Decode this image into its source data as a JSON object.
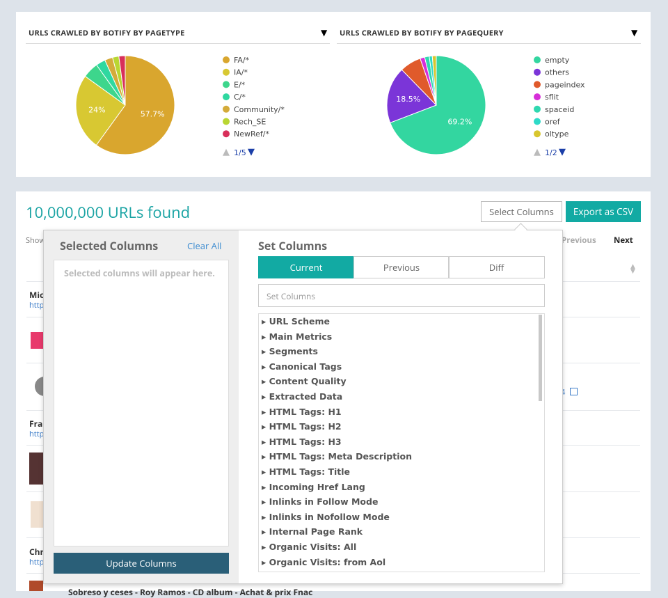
{
  "chart_data": [
    {
      "type": "pie",
      "title": "URLS CRAWLED BY BOTIFY BY PAGETYPE",
      "categories": [
        "FA/*",
        "IA/*",
        "E/*",
        "C/*",
        "Community/*",
        "Rech_SE",
        "NewRef/*"
      ],
      "values": [
        57.7,
        24,
        5,
        3,
        2.5,
        2,
        2
      ],
      "value_labels": [
        "57.7%",
        "24%",
        null,
        null,
        null,
        null,
        null
      ],
      "colors": [
        "#d9a62e",
        "#d8c832",
        "#3dd68c",
        "#2fd8a0",
        "#d4ab3a",
        "#b9d632",
        "#d82f5a"
      ],
      "legend_page": "1/5"
    },
    {
      "type": "pie",
      "title": "URLS CRAWLED BY BOTIFY BY PAGEQUERY",
      "categories": [
        "empty",
        "others",
        "pageindex",
        "sflit",
        "spaceid",
        "oref",
        "oltype"
      ],
      "values": [
        69.2,
        18.5,
        7,
        1.5,
        1.5,
        1,
        1.3
      ],
      "value_labels": [
        "69.2%",
        "18.5%",
        null,
        null,
        null,
        null,
        null
      ],
      "colors": [
        "#33d6a0",
        "#7b35d8",
        "#e05a2b",
        "#d62fd8",
        "#2fd8b0",
        "#2ddac8",
        "#d8c62e"
      ],
      "legend_page": "1/2"
    }
  ],
  "results": {
    "count": "10,000,000 URLs found",
    "select_columns": "Select Columns",
    "export": "Export as CSV",
    "show": "Show",
    "previous": "Previous",
    "next": "Next",
    "rows": [
      "Mic",
      "http",
      "Fra",
      "http",
      "Chr",
      "http"
    ],
    "cell_fragment": "4",
    "last_row": "Sobreso y ceses - Roy Ramos - CD album - Achat & prix Fnac"
  },
  "column_picker": {
    "selected_title": "Selected Columns",
    "clear_all": "Clear All",
    "placeholder_text": "Selected columns will appear here.",
    "update": "Update Columns",
    "set_title": "Set Columns",
    "tabs": [
      "Current",
      "Previous",
      "Diff"
    ],
    "search_placeholder": "Set Columns",
    "groups": [
      "URL Scheme",
      "Main Metrics",
      "Segments",
      "Canonical Tags",
      "Content Quality",
      "Extracted Data",
      "HTML Tags: H1",
      "HTML Tags: H2",
      "HTML Tags: H3",
      "HTML Tags: Meta Description",
      "HTML Tags: Title",
      "Incoming Href Lang",
      "Inlinks in Follow Mode",
      "Inlinks in Nofollow Mode",
      "Internal Page Rank",
      "Organic Visits: All",
      "Organic Visits: from Aol"
    ]
  }
}
